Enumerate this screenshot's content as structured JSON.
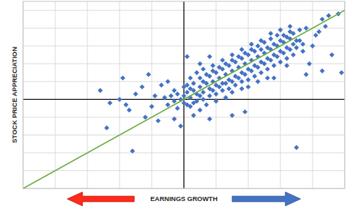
{
  "chart_data": {
    "type": "scatter",
    "x_label": "EARNINGS GROWTH",
    "y_label": "STOCK PRICE APPRECIATION",
    "xlim": [
      -50,
      50
    ],
    "ylim": [
      -50,
      55
    ],
    "xticks": [
      -50,
      -40,
      -30,
      -20,
      -10,
      0,
      10,
      20,
      30,
      40,
      50
    ],
    "yticks": [
      -50,
      -40,
      -30,
      -20,
      -10,
      0,
      10,
      20,
      30,
      40,
      50
    ],
    "grid": true,
    "tick_labels": false,
    "marker": "diamond",
    "color": "#4472c4",
    "x": [
      0,
      1,
      2,
      3,
      -1,
      -2,
      -3,
      0,
      1,
      2,
      4,
      5,
      6,
      7,
      8,
      9,
      10,
      11,
      12,
      13,
      14,
      15,
      16,
      17,
      18,
      19,
      20,
      21,
      22,
      23,
      24,
      25,
      26,
      27,
      28,
      29,
      30,
      31,
      32,
      33,
      34,
      35,
      3,
      5,
      7,
      9,
      11,
      13,
      15,
      17,
      19,
      21,
      23,
      25,
      27,
      29,
      31,
      33,
      4,
      6,
      8,
      10,
      12,
      14,
      16,
      18,
      20,
      22,
      24,
      26,
      28,
      30,
      32,
      34,
      1,
      2,
      -4,
      -5,
      -6,
      -3,
      -2,
      0,
      3,
      5,
      6,
      8,
      10,
      12,
      14,
      16,
      18,
      20,
      22,
      24,
      26,
      28,
      30,
      32,
      34,
      36,
      9,
      11,
      13,
      15,
      17,
      19,
      21,
      23,
      25,
      27,
      29,
      31,
      33,
      35,
      37,
      7,
      10,
      13,
      15,
      18,
      20,
      23,
      26,
      2,
      4,
      6,
      9,
      12,
      15,
      18,
      21,
      24,
      27,
      30,
      33,
      49,
      43,
      38,
      35,
      -16,
      -24,
      -23,
      -26,
      -11,
      -13,
      -19,
      1,
      48,
      45,
      43,
      44,
      36,
      37,
      40,
      39,
      41,
      -15,
      -17,
      -10,
      -12,
      -8,
      -1,
      -3,
      8,
      15,
      19,
      -20,
      -18,
      -7,
      -9,
      3,
      5,
      38,
      42,
      46,
      32,
      28,
      5,
      8,
      -5
    ],
    "values": [
      2,
      4,
      1,
      5,
      0,
      3,
      -1,
      -2,
      -3,
      6,
      3,
      7,
      4,
      9,
      6,
      10,
      8,
      12,
      9,
      14,
      11,
      16,
      13,
      18,
      15,
      20,
      17,
      22,
      19,
      24,
      21,
      26,
      23,
      28,
      25,
      30,
      27,
      32,
      29,
      34,
      31,
      33,
      9,
      12,
      14,
      16,
      18,
      20,
      22,
      24,
      26,
      28,
      30,
      32,
      34,
      36,
      36,
      38,
      -1,
      0,
      2,
      3,
      5,
      6,
      8,
      10,
      11,
      13,
      15,
      17,
      19,
      21,
      23,
      25,
      8,
      -4,
      2,
      -3,
      1,
      5,
      -5,
      7,
      -2,
      2,
      10,
      13,
      15,
      17,
      19,
      21,
      23,
      25,
      27,
      28,
      29,
      31,
      33,
      35,
      37,
      39,
      5,
      7,
      9,
      10,
      12,
      14,
      16,
      18,
      20,
      22,
      24,
      26,
      28,
      29,
      31,
      -3,
      -1,
      1,
      4,
      6,
      7,
      10,
      12,
      12,
      15,
      17,
      19,
      22,
      25,
      28,
      31,
      33,
      37,
      39,
      41,
      15,
      16,
      14,
      -27,
      -29,
      -16,
      -2,
      5,
      14,
      7,
      12,
      24,
      48,
      47,
      45,
      41,
      33,
      27,
      30,
      20,
      36,
      3,
      -6,
      -4,
      -10,
      -12,
      -15,
      -11,
      -11,
      -9,
      -7,
      0,
      -3,
      8,
      2,
      -9,
      -6,
      40,
      38,
      25,
      19,
      12,
      20,
      24,
      10
    ],
    "reference_line": {
      "x": [
        -50,
        50
      ],
      "values": [
        -50,
        50
      ],
      "color": "#70ad47"
    }
  }
}
